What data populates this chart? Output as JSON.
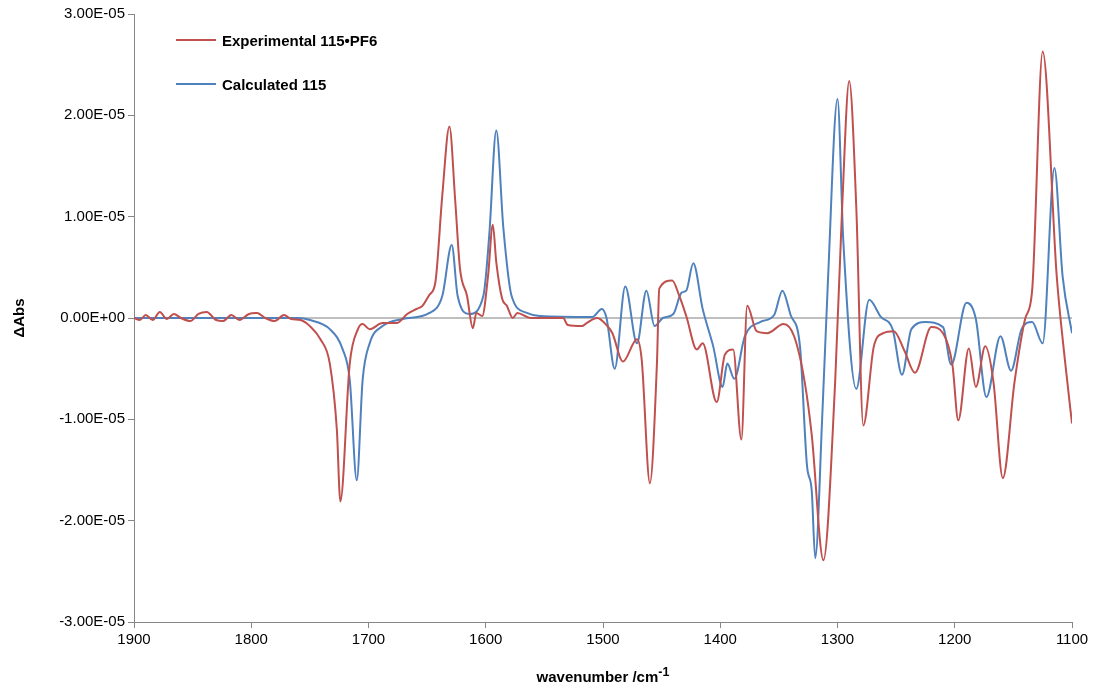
{
  "chart_data": {
    "type": "line",
    "xlabel": "wavenumber /cm$^{-1}$",
    "ylabel": "ΔAbs",
    "legend": "top left",
    "grid": false,
    "marker": "none",
    "line_style": "solid",
    "xlim": [
      1900,
      1100
    ],
    "xticks": [
      1900,
      1800,
      1700,
      1600,
      1500,
      1400,
      1300,
      1200,
      1100
    ],
    "ylim": [
      -3e-05,
      3e-05
    ],
    "yticks": [
      {
        "value": -3e-05,
        "label": "-3.00E-05"
      },
      {
        "value": -2e-05,
        "label": "-2.00E-05"
      },
      {
        "value": -1e-05,
        "label": "-1.00E-05"
      },
      {
        "value": 0,
        "label": "0.00E+00"
      },
      {
        "value": 1e-05,
        "label": "1.00E-05"
      },
      {
        "value": 2e-05,
        "label": "2.00E-05"
      },
      {
        "value": 3e-05,
        "label": "3.00E-05"
      }
    ],
    "ref_lines": [
      {
        "axis": "y",
        "value": 0,
        "color": "#bfbfbf"
      }
    ],
    "series": [
      {
        "name": "Experimental 115•PF6",
        "color": "#c0504d",
        "x": [
          1900,
          1895,
          1890,
          1884,
          1878,
          1872,
          1866,
          1860,
          1852,
          1845,
          1838,
          1830,
          1824,
          1817,
          1810,
          1802,
          1795,
          1788,
          1780,
          1772,
          1766,
          1758,
          1750,
          1741,
          1733,
          1727,
          1724,
          1716,
          1709,
          1705,
          1699,
          1688,
          1676,
          1667,
          1659,
          1654,
          1648,
          1643,
          1637,
          1631,
          1626,
          1622,
          1616,
          1611,
          1608,
          1603,
          1598,
          1594,
          1591,
          1586,
          1582,
          1577,
          1573,
          1562,
          1534,
          1530,
          1518,
          1514,
          1505,
          1497,
          1492,
          1483,
          1471,
          1467,
          1460,
          1454,
          1452,
          1441,
          1435,
          1429,
          1420,
          1415,
          1403,
          1396,
          1389,
          1382,
          1377,
          1369,
          1360,
          1346,
          1337,
          1328,
          1322,
          1312,
          1302,
          1296,
          1290,
          1284,
          1278,
          1269,
          1261,
          1252,
          1243,
          1234,
          1220,
          1210,
          1202,
          1197,
          1188,
          1182,
          1174,
          1167,
          1159,
          1149,
          1140,
          1134,
          1125,
          1113,
          1106,
          1100
        ],
        "values": [
          0,
          -2e-07,
          3e-07,
          -2e-07,
          6e-07,
          -1e-07,
          4e-07,
          0,
          -3e-07,
          4e-07,
          6e-07,
          -2e-07,
          -3e-07,
          3e-07,
          -2e-07,
          4e-07,
          5e-07,
          0,
          -3e-07,
          3e-07,
          -1e-07,
          -2e-07,
          -8e-07,
          -2.1e-06,
          -4.5e-06,
          -1.1e-05,
          -1.81e-05,
          -4.5e-06,
          -1.1e-06,
          -6e-07,
          -1.1e-06,
          -5e-07,
          -5e-07,
          4e-07,
          9e-07,
          1.2e-06,
          2.3e-06,
          3.5e-06,
          1.22e-05,
          1.89e-05,
          1.15e-05,
          4.9e-06,
          2.2e-06,
          -1e-06,
          5e-07,
          2e-07,
          4.2e-06,
          9.2e-06,
          5.5e-06,
          1.9e-06,
          1.2e-06,
          0,
          5e-07,
          0,
          0,
          -7e-07,
          -8e-07,
          -5e-07,
          0,
          -7e-07,
          -1.5e-06,
          -4.3e-06,
          -2.1e-06,
          -4.1e-06,
          -1.63e-05,
          -4.5e-06,
          2.9e-06,
          3.7e-06,
          2.2e-06,
          2e-07,
          -3.1e-06,
          -2.5e-06,
          -8.3e-06,
          -3.6e-06,
          -3.1e-06,
          -1.2e-05,
          1.2e-06,
          -1.3e-06,
          -1.5e-06,
          -6e-07,
          -1.8e-06,
          -6.3e-06,
          -1.15e-05,
          -2.39e-05,
          -6.3e-06,
          1.1e-05,
          2.34e-05,
          1.1e-05,
          -1.06e-05,
          -2.8e-06,
          -1.5e-06,
          -1.3e-06,
          -3.2e-06,
          -5.4e-06,
          -9e-07,
          -1.5e-06,
          -4.6e-06,
          -1.01e-05,
          -3e-06,
          -6.8e-06,
          -2.8e-06,
          -6.3e-06,
          -1.58e-05,
          -6.3e-06,
          -1e-07,
          2.7e-06,
          2.63e-05,
          4.1e-06,
          -4.2e-06,
          -1.04e-05
        ]
      },
      {
        "name": "Calculated 115",
        "color": "#4f81bd",
        "x": [
          1900,
          1800,
          1760,
          1750,
          1733,
          1722,
          1716,
          1710,
          1705,
          1699,
          1688,
          1671,
          1648,
          1637,
          1629,
          1624,
          1614,
          1602,
          1597,
          1591,
          1585,
          1578,
          1565,
          1554,
          1509,
          1501,
          1497,
          1490,
          1481,
          1471,
          1463,
          1456,
          1449,
          1440,
          1433,
          1429,
          1423,
          1415,
          1406,
          1398,
          1394,
          1388,
          1379,
          1366,
          1354,
          1347,
          1340,
          1332,
          1326,
          1322,
          1319,
          1313,
          1308,
          1300,
          1295,
          1284,
          1273,
          1263,
          1253,
          1245,
          1237,
          1225,
          1210,
          1203,
          1190,
          1182,
          1173,
          1161,
          1152,
          1143,
          1134,
          1125,
          1115,
          1108,
          1100
        ],
        "values": [
          0,
          0,
          0,
          -2e-07,
          -1.1e-06,
          -3.1e-06,
          -6.1e-06,
          -1.6e-05,
          -6.1e-06,
          -2.5e-06,
          -8e-07,
          -1e-07,
          5e-07,
          2.2e-06,
          7.2e-06,
          2.2e-06,
          4e-07,
          2.2e-06,
          8.2e-06,
          1.85e-05,
          8.9e-06,
          2.2e-06,
          5e-07,
          2e-07,
          1e-07,
          9e-07,
          0,
          -5e-06,
          3.1e-06,
          -2.5e-06,
          2.7e-06,
          -8e-07,
          0,
          4e-07,
          2.5e-06,
          2.7e-06,
          5.4e-06,
          9e-07,
          -2.8e-06,
          -6.8e-06,
          -4.5e-06,
          -6e-06,
          -1.8e-06,
          -4e-07,
          3e-07,
          2.7e-06,
          3e-07,
          -2.8e-06,
          -1.46e-05,
          -1.7e-05,
          -2.37e-05,
          -9.7e-06,
          4.1e-06,
          2.16e-05,
          7.5e-06,
          -7e-06,
          1.8e-06,
          1e-07,
          -1.1e-06,
          -5.6e-06,
          -1.1e-06,
          -4e-07,
          -9e-07,
          -4.6e-06,
          1.5e-06,
          -1e-07,
          -7.8e-06,
          -1.8e-06,
          -5.2e-06,
          -1.1e-06,
          -4e-07,
          -2.5e-06,
          1.48e-05,
          4.1e-06,
          -1.5e-06
        ]
      }
    ]
  }
}
